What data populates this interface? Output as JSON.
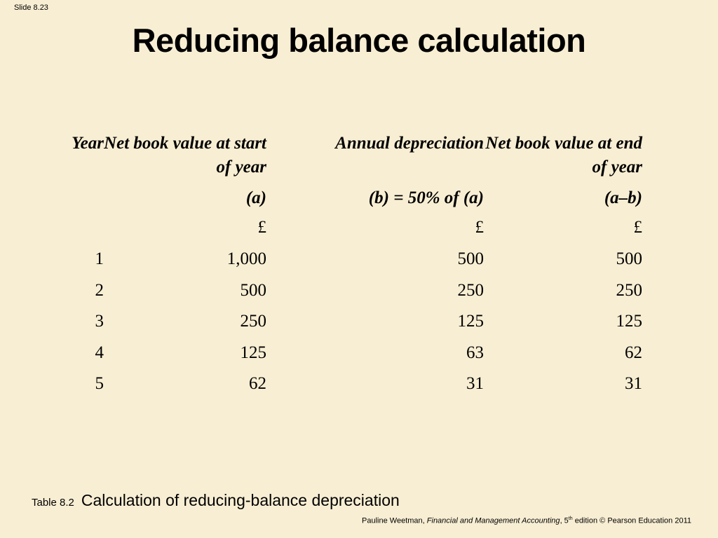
{
  "slide": {
    "number": "Slide 8.23",
    "title": "Reducing balance calculation"
  },
  "table": {
    "headers": [
      "Year",
      "Net book value at start of year",
      "Annual depreciation",
      "Net book value at end of year"
    ],
    "formulas": [
      "",
      "(a)",
      "(b) = 50% of (a)",
      "(a–b)"
    ],
    "currency": [
      "",
      "£",
      "£",
      "£"
    ],
    "rows": [
      [
        "1",
        "1,000",
        "500",
        "500"
      ],
      [
        "2",
        "500",
        "250",
        "250"
      ],
      [
        "3",
        "250",
        "125",
        "125"
      ],
      [
        "4",
        "125",
        "63",
        "62"
      ],
      [
        "5",
        "62",
        "31",
        "31"
      ]
    ]
  },
  "caption": {
    "label": "Table 8.2",
    "text": "Calculation of reducing-balance depreciation"
  },
  "footer": {
    "author": "Pauline Weetman, ",
    "book": "Financial and Management Accounting",
    "edition_pre": ", 5",
    "edition_sup": "th",
    "edition_post": " edition © Pearson Education 2011"
  }
}
